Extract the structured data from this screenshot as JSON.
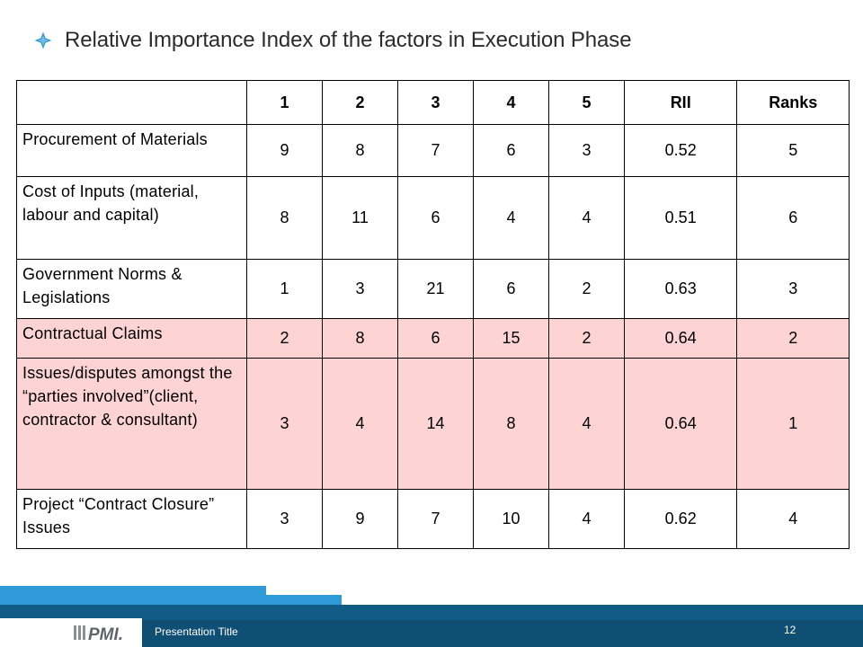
{
  "slide": {
    "title": "Relative Importance Index of the factors in Execution Phase",
    "bullet_icon": "diamond-bullet-icon",
    "accent_color": "#2e9bd6"
  },
  "table": {
    "headers": [
      "",
      "1",
      "2",
      "3",
      "4",
      "5",
      "RII",
      "Ranks"
    ],
    "highlight_color": "#fdd3d3",
    "rows": [
      {
        "factor": "Procurement of Materials",
        "values": [
          "9",
          "8",
          "7",
          "6",
          "3",
          "0.52",
          "5"
        ],
        "highlighted": false
      },
      {
        "factor": "Cost of Inputs (material, labour and capital)",
        "values": [
          "8",
          "11",
          "6",
          "4",
          "4",
          "0.51",
          "6"
        ],
        "highlighted": false
      },
      {
        "factor": "Government Norms & Legislations",
        "values": [
          "1",
          "3",
          "21",
          "6",
          "2",
          "0.63",
          "3"
        ],
        "highlighted": false
      },
      {
        "factor": "Contractual Claims",
        "values": [
          "2",
          "8",
          "6",
          "15",
          "2",
          "0.64",
          "2"
        ],
        "highlighted": true
      },
      {
        "factor": "Issues/disputes amongst the “parties involved”(client, contractor & consultant)",
        "values": [
          "3",
          "4",
          "14",
          "8",
          "4",
          "0.64",
          "1"
        ],
        "highlighted": true
      },
      {
        "factor": "Project “Contract Closure” Issues",
        "values": [
          "3",
          "9",
          "7",
          "10",
          "4",
          "0.62",
          "4"
        ],
        "highlighted": false
      }
    ]
  },
  "footer": {
    "logo_text": "PMI.",
    "label": "Presentation Title",
    "page_number": "12",
    "bar_color": "#125b86"
  }
}
